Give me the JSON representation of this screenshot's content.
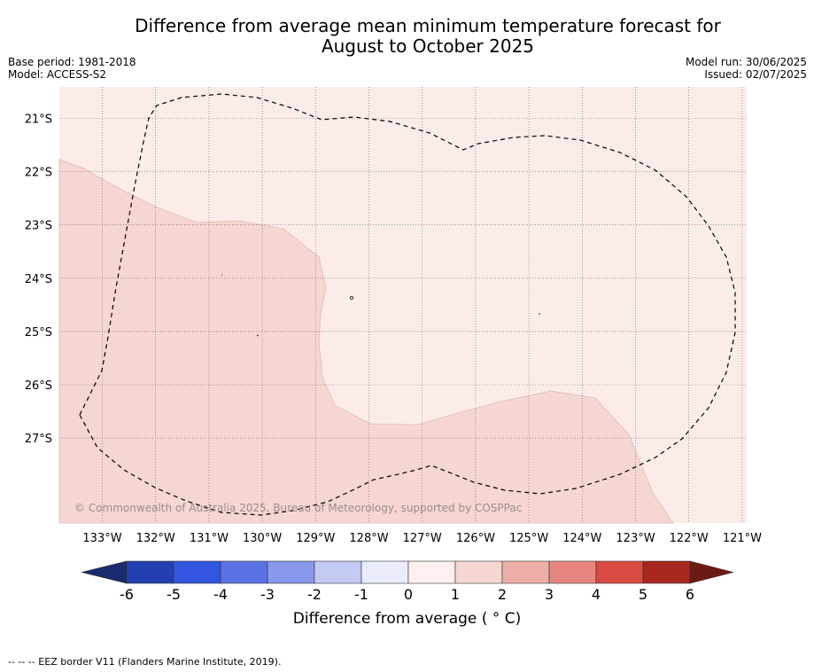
{
  "title_line1": "Difference from average mean minimum temperature forecast for",
  "title_line2": "August to October 2025",
  "meta_left": [
    "Base period: 1981-2018",
    "Model: ACCESS-S2"
  ],
  "meta_right": [
    "Model run: 30/06/2025",
    "Issued: 02/07/2025"
  ],
  "map": {
    "lon_labels": [
      "133°W",
      "132°W",
      "131°W",
      "130°W",
      "129°W",
      "128°W",
      "127°W",
      "126°W",
      "125°W",
      "124°W",
      "123°W",
      "122°W",
      "121°W"
    ],
    "lat_labels": [
      "21°S",
      "22°S",
      "23°S",
      "24°S",
      "25°S",
      "26°S",
      "27°S"
    ],
    "region_colors": {
      "bin_0_1": "#fbecea",
      "bin_1_2": "#f5d6d3"
    },
    "eez_style": "dashed black line",
    "copyright": "© Commonwealth of Australia 2025, Bureau of Meteorology, supported by COSPPac"
  },
  "colorbar": {
    "ticks": [
      "-6",
      "-5",
      "-4",
      "-3",
      "-2",
      "-1",
      "0",
      "1",
      "2",
      "3",
      "4",
      "5",
      "6"
    ],
    "colors": [
      "#1a2a6e",
      "#2440b0",
      "#3356e2",
      "#5a72e4",
      "#8898ea",
      "#c4caf4",
      "#e8ecfb",
      "#fdf0ee",
      "#f5d6d3",
      "#edaea8",
      "#e6867f",
      "#d94b42",
      "#a8281f",
      "#6e1a14"
    ],
    "label": "Difference from average ( ° C)"
  },
  "footnote": "--  --  -- EEZ border V11 (Flanders Marine Institute, 2019)."
}
